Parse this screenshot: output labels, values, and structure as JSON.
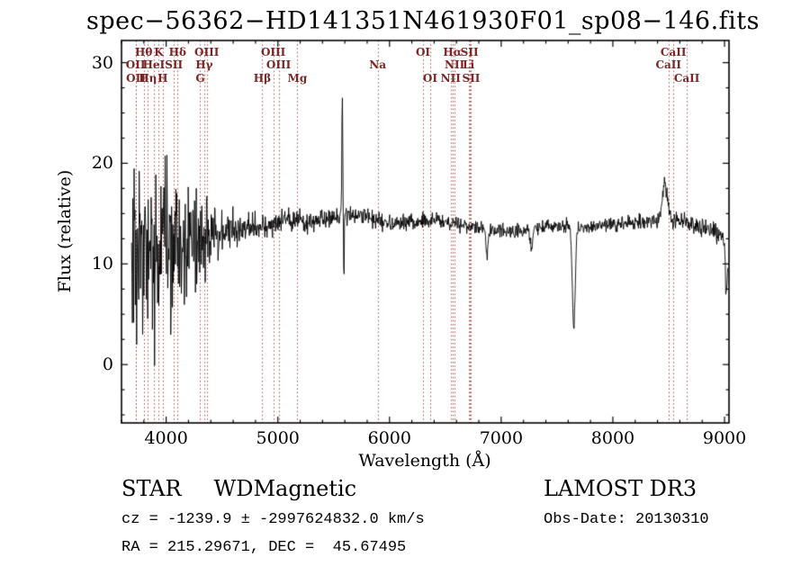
{
  "chart_data": {
    "type": "line",
    "title": "spec−56362−HD141351N461930F01_sp08−146.fits",
    "xlabel": "Wavelength (Å)",
    "ylabel": "Flux (relative)",
    "xlim": [
      3600,
      9040
    ],
    "ylim": [
      -5.8,
      32.2
    ],
    "xticks": [
      4000,
      5000,
      6000,
      7000,
      8000,
      9000
    ],
    "yticks": [
      0,
      10,
      20,
      30
    ],
    "x_minor_step": 200,
    "y_minor_step": 2.5,
    "grid": false,
    "legend": false,
    "line_color": "#000000",
    "spectral_line_color": "#a84848",
    "spectral_label_color": "#7c2525",
    "data_range": [
      3690,
      9030
    ],
    "noise_seed": 20130310,
    "continuum": [
      [
        3690,
        11.0
      ],
      [
        3800,
        11.3
      ],
      [
        3950,
        11.5
      ],
      [
        4100,
        11.8
      ],
      [
        4300,
        12.3
      ],
      [
        4500,
        13.0
      ],
      [
        4700,
        13.6
      ],
      [
        4900,
        14.0
      ],
      [
        5100,
        14.4
      ],
      [
        5300,
        14.2
      ],
      [
        5500,
        14.6
      ],
      [
        5700,
        14.9
      ],
      [
        5900,
        14.3
      ],
      [
        6100,
        14.0
      ],
      [
        6300,
        14.3
      ],
      [
        6500,
        14.1
      ],
      [
        6700,
        13.8
      ],
      [
        6900,
        13.4
      ],
      [
        7100,
        13.2
      ],
      [
        7300,
        13.5
      ],
      [
        7500,
        13.8
      ],
      [
        7700,
        13.6
      ],
      [
        7900,
        13.8
      ],
      [
        8100,
        14.0
      ],
      [
        8300,
        14.2
      ],
      [
        8520,
        14.6
      ],
      [
        8700,
        14.0
      ],
      [
        8900,
        13.4
      ],
      [
        9000,
        12.5
      ],
      [
        9030,
        10.5
      ]
    ],
    "noise_envelope": [
      [
        3690,
        9.5
      ],
      [
        3800,
        9.0
      ],
      [
        3900,
        8.5
      ],
      [
        4000,
        7.8
      ],
      [
        4150,
        6.2
      ],
      [
        4300,
        4.4
      ],
      [
        4450,
        2.7
      ],
      [
        4600,
        1.8
      ],
      [
        4800,
        1.35
      ],
      [
        5000,
        1.15
      ],
      [
        5300,
        1.0
      ],
      [
        5600,
        0.9
      ],
      [
        6000,
        0.8
      ],
      [
        6500,
        0.72
      ],
      [
        7000,
        0.68
      ],
      [
        7600,
        0.68
      ],
      [
        8200,
        0.72
      ],
      [
        8700,
        0.8
      ],
      [
        9030,
        1.1
      ]
    ],
    "features": [
      {
        "x": 5577,
        "amp": 12.5,
        "sigma": 4
      },
      {
        "x": 5592,
        "amp": -7.0,
        "sigma": 3
      },
      {
        "x": 6872,
        "amp": -2.2,
        "sigma": 10
      },
      {
        "x": 7270,
        "amp": -2.0,
        "sigma": 9
      },
      {
        "x": 7650,
        "amp": -10.0,
        "sigma": 13
      },
      {
        "x": 8465,
        "amp": 3.4,
        "sigma": 22
      },
      {
        "x": 9015,
        "amp": -4.5,
        "sigma": 7
      }
    ],
    "spectral_lines": [
      {
        "label": "OII",
        "wavelength": 3726,
        "row": 2
      },
      {
        "label": "OII",
        "wavelength": 3729,
        "row": 3
      },
      {
        "label": "Hθ",
        "wavelength": 3799,
        "row": 1
      },
      {
        "label": "Hη",
        "wavelength": 3836,
        "row": 3
      },
      {
        "label": "HeI",
        "wavelength": 3889,
        "row": 2
      },
      {
        "label": "K",
        "wavelength": 3934,
        "row": 1
      },
      {
        "label": "H",
        "wavelength": 3969,
        "row": 3
      },
      {
        "label": "SII",
        "wavelength": 4069,
        "row": 2
      },
      {
        "label": "Hδ",
        "wavelength": 4102,
        "row": 1
      },
      {
        "label": "G",
        "wavelength": 4305,
        "row": 3
      },
      {
        "label": "Hγ",
        "wavelength": 4341,
        "row": 2
      },
      {
        "label": "OIII",
        "wavelength": 4363,
        "row": 1
      },
      {
        "label": "Hβ",
        "wavelength": 4861,
        "row": 3
      },
      {
        "label": "OIII",
        "wavelength": 4959,
        "row": 1
      },
      {
        "label": "OIII",
        "wavelength": 5007,
        "row": 2
      },
      {
        "label": "Mg",
        "wavelength": 5175,
        "row": 3
      },
      {
        "label": "Na",
        "wavelength": 5894,
        "row": 2
      },
      {
        "label": "OI",
        "wavelength": 6300,
        "row": 1
      },
      {
        "label": "OI",
        "wavelength": 6364,
        "row": 3
      },
      {
        "label": "NII",
        "wavelength": 6548,
        "row": 3
      },
      {
        "label": "Hα",
        "wavelength": 6563,
        "row": 1
      },
      {
        "label": "NII",
        "wavelength": 6583,
        "row": 2
      },
      {
        "label": "Li",
        "wavelength": 6708,
        "row": 2
      },
      {
        "label": "SII",
        "wavelength": 6716,
        "row": 1
      },
      {
        "label": "SII",
        "wavelength": 6731,
        "row": 3
      },
      {
        "label": "CaII",
        "wavelength": 8498,
        "row": 2
      },
      {
        "label": "CaII",
        "wavelength": 8542,
        "row": 1
      },
      {
        "label": "CaII",
        "wavelength": 8662,
        "row": 3
      }
    ]
  },
  "footer": {
    "class_type": "STAR",
    "subclass": "WDMagnetic",
    "survey": "LAMOST DR3",
    "cz_line": "cz = -1239.9 ± -2997624832.0 km/s",
    "obs_date_line": "Obs-Date: 20130310",
    "ra_dec_line": "RA = 215.29671, DEC =  45.67495"
  }
}
